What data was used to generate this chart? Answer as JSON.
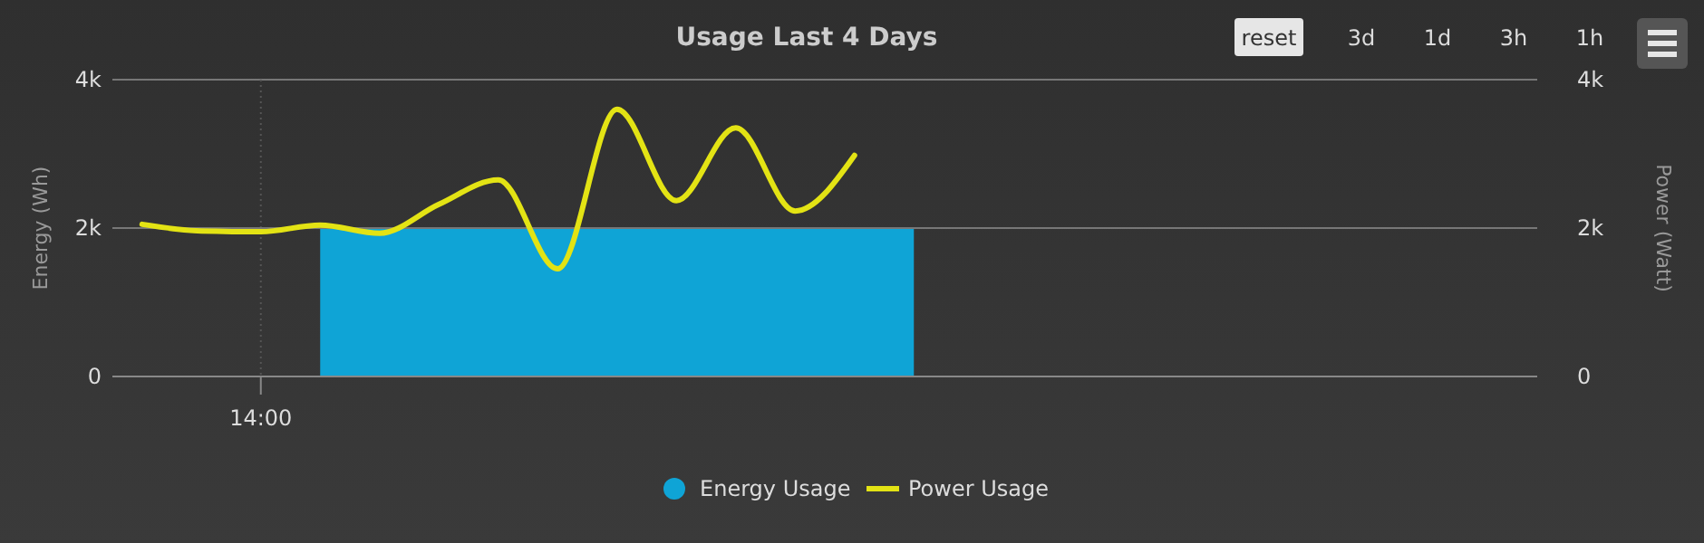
{
  "chart_data": {
    "type": "area",
    "title": "Usage Last 4 Days",
    "ylabel": "Energy (Wh)",
    "y2label": "Power (Watt)",
    "categories": [
      null,
      null,
      "14:00",
      null,
      null,
      null,
      null,
      null,
      null,
      null,
      null,
      null,
      null,
      null,
      null,
      null,
      null,
      null,
      null,
      null,
      null,
      null,
      null,
      null
    ],
    "ylim": [
      0,
      4000
    ],
    "yticks": [
      {
        "value": 0,
        "label": "0"
      },
      {
        "value": 2000,
        "label": "2k"
      },
      {
        "value": 4000,
        "label": "4k"
      }
    ],
    "y2lim": [
      0,
      4000
    ],
    "y2ticks": [
      {
        "value": 0,
        "label": "0"
      },
      {
        "value": 2000,
        "label": "2k"
      },
      {
        "value": 4000,
        "label": "4k"
      }
    ],
    "ref_lines": [
      {
        "axis": "x",
        "value": "14:00",
        "line_style": "dotted",
        "color": "#555555"
      },
      {
        "axis": "y",
        "value": 2000,
        "line_style": "solid",
        "color": "#777777"
      }
    ],
    "legend": "bottom",
    "marker": "none",
    "series": [
      {
        "name": "Energy Usage",
        "color": "#0fa4d6",
        "values": [
          null,
          null,
          null,
          2000,
          2000,
          2000,
          2000,
          2000,
          2000,
          2000,
          2000,
          2000,
          2000,
          2000,
          null,
          null,
          null,
          null,
          null,
          null,
          null,
          null,
          null,
          null
        ]
      },
      {
        "name": "Power Usage",
        "type": "line",
        "color": "#e3e314",
        "values": [
          2050,
          1960,
          1950,
          2040,
          1930,
          2320,
          2650,
          1450,
          3600,
          2370,
          3350,
          2230,
          2980,
          null,
          null,
          null,
          null,
          null,
          null,
          null,
          null,
          null,
          null,
          null
        ]
      }
    ],
    "annotations": [
      "reset",
      "3d",
      "1d",
      "3h",
      "1h"
    ]
  }
}
